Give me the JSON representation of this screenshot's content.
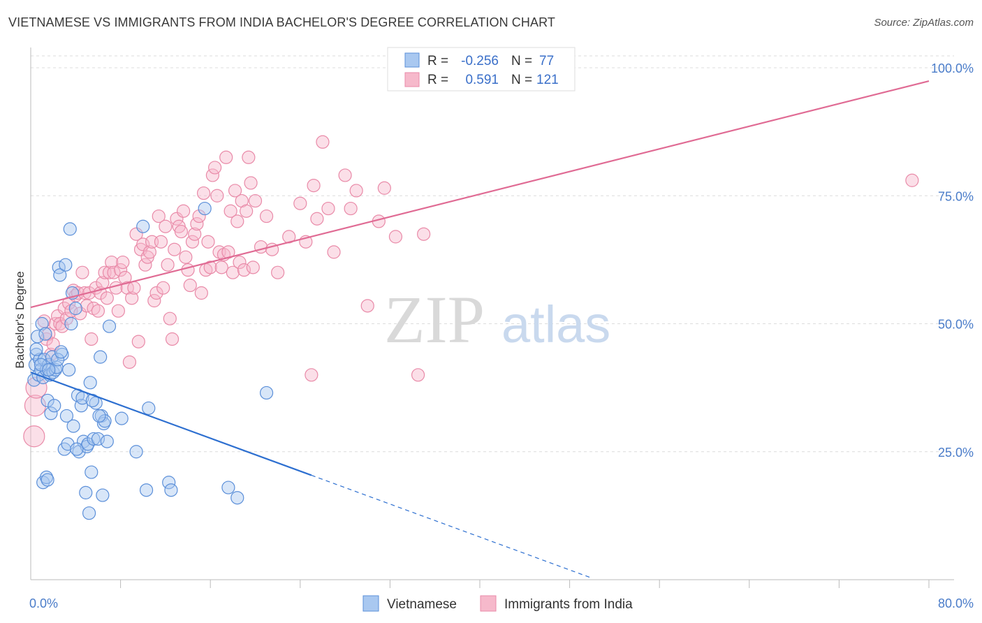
{
  "title": "VIETNAMESE VS IMMIGRANTS FROM INDIA BACHELOR'S DEGREE CORRELATION CHART",
  "source": "Source: ZipAtlas.com",
  "watermark": {
    "zip": "ZIP",
    "atlas": "atlas"
  },
  "colors": {
    "blue_fill": "#a9c8f0",
    "blue_stroke": "#5b8fd9",
    "blue_line": "#2d6fd0",
    "pink_fill": "#f6b9cb",
    "pink_stroke": "#e98aa8",
    "pink_line": "#e06b94",
    "grid": "#dcdcdc",
    "axis": "#bbbbbb"
  },
  "legend": {
    "rows": [
      {
        "r_label": "R =",
        "r_value": "-0.256",
        "n_label": "N =",
        "n_value": "77"
      },
      {
        "r_label": "R =",
        "r_value": "0.591",
        "n_label": "N =",
        "n_value": "121"
      }
    ]
  },
  "chart_data": {
    "type": "scatter",
    "title": "VIETNAMESE VS IMMIGRANTS FROM INDIA BACHELOR'S DEGREE CORRELATION CHART",
    "xlabel": "",
    "ylabel": "Bachelor's Degree",
    "xlim": [
      0,
      80
    ],
    "ylim": [
      0,
      100
    ],
    "x_tick_labels": [
      "0.0%",
      "80.0%"
    ],
    "y_tick_labels": [
      "25.0%",
      "50.0%",
      "75.0%",
      "100.0%"
    ],
    "y_ticks": [
      25,
      50,
      75,
      100
    ],
    "grid": true,
    "legend_position": "top-center",
    "series": [
      {
        "name": "Vietnamese",
        "color": "blue",
        "r": -0.256,
        "n": 77,
        "trend": {
          "x0": 0,
          "y0": 40.5,
          "x1": 25,
          "y1": 20.4,
          "dash_to_x": 50,
          "dash_to_y": 0.3
        },
        "points": [
          [
            0.3,
            39
          ],
          [
            0.4,
            42
          ],
          [
            0.5,
            44
          ],
          [
            0.6,
            47.5
          ],
          [
            0.7,
            40
          ],
          [
            0.8,
            43
          ],
          [
            0.9,
            41
          ],
          [
            1.0,
            50
          ],
          [
            1.1,
            39.5
          ],
          [
            1.2,
            43
          ],
          [
            1.3,
            48
          ],
          [
            1.4,
            41
          ],
          [
            1.5,
            35
          ],
          [
            1.6,
            42
          ],
          [
            1.7,
            40
          ],
          [
            1.8,
            32.5
          ],
          [
            1.9,
            43.5
          ],
          [
            2.0,
            40.5
          ],
          [
            2.1,
            34
          ],
          [
            2.2,
            41
          ],
          [
            2.3,
            41.5
          ],
          [
            2.5,
            61
          ],
          [
            2.6,
            59.5
          ],
          [
            2.8,
            44
          ],
          [
            3.0,
            25.5
          ],
          [
            3.1,
            61.5
          ],
          [
            3.2,
            32
          ],
          [
            3.3,
            26.5
          ],
          [
            3.5,
            68.5
          ],
          [
            3.6,
            50
          ],
          [
            3.7,
            56
          ],
          [
            3.8,
            30
          ],
          [
            4.0,
            53
          ],
          [
            4.2,
            36
          ],
          [
            4.3,
            25
          ],
          [
            4.5,
            34
          ],
          [
            4.6,
            35.5
          ],
          [
            4.7,
            27
          ],
          [
            4.9,
            17
          ],
          [
            5.0,
            26
          ],
          [
            5.1,
            26.5
          ],
          [
            5.2,
            13
          ],
          [
            5.3,
            38.5
          ],
          [
            5.4,
            21
          ],
          [
            5.6,
            27.5
          ],
          [
            5.8,
            34.5
          ],
          [
            6.0,
            27.5
          ],
          [
            6.2,
            43.5
          ],
          [
            6.3,
            32
          ],
          [
            6.4,
            16.5
          ],
          [
            6.5,
            30.5
          ],
          [
            6.6,
            31
          ],
          [
            6.8,
            27
          ],
          [
            7.0,
            49.5
          ],
          [
            8.1,
            31.5
          ],
          [
            9.4,
            25
          ],
          [
            10.0,
            69
          ],
          [
            10.3,
            17.5
          ],
          [
            10.5,
            33.5
          ],
          [
            12.3,
            19
          ],
          [
            12.5,
            17.5
          ],
          [
            15.5,
            72.5
          ],
          [
            17.6,
            18
          ],
          [
            18.4,
            16
          ],
          [
            21.0,
            36.5
          ],
          [
            1.1,
            19
          ],
          [
            1.4,
            20
          ],
          [
            1.5,
            19.5
          ],
          [
            0.9,
            42
          ],
          [
            1.6,
            41
          ],
          [
            2.4,
            43
          ],
          [
            2.7,
            44.5
          ],
          [
            3.4,
            41
          ],
          [
            4.1,
            25.5
          ],
          [
            5.5,
            35
          ],
          [
            6.1,
            32
          ],
          [
            0.5,
            45
          ]
        ]
      },
      {
        "name": "Immigrants from India",
        "color": "pink",
        "r": 0.591,
        "n": 121,
        "trend": {
          "x0": 0,
          "y0": 53.2,
          "x1": 80,
          "y1": 97.4
        },
        "points": [
          [
            0.3,
            28
          ],
          [
            0.4,
            34
          ],
          [
            0.5,
            37.5
          ],
          [
            1.2,
            50.5
          ],
          [
            1.4,
            47
          ],
          [
            1.6,
            48
          ],
          [
            1.8,
            44
          ],
          [
            2.0,
            46
          ],
          [
            2.2,
            50
          ],
          [
            2.4,
            51.5
          ],
          [
            2.6,
            50
          ],
          [
            2.8,
            49.5
          ],
          [
            3.0,
            53
          ],
          [
            3.2,
            51
          ],
          [
            3.4,
            54
          ],
          [
            3.6,
            52.5
          ],
          [
            3.8,
            56.5
          ],
          [
            4.0,
            55.5
          ],
          [
            4.2,
            56
          ],
          [
            4.4,
            52
          ],
          [
            4.6,
            60
          ],
          [
            4.8,
            56
          ],
          [
            5.0,
            53.5
          ],
          [
            5.2,
            56
          ],
          [
            5.4,
            47
          ],
          [
            5.6,
            53
          ],
          [
            5.8,
            57
          ],
          [
            6.0,
            52.5
          ],
          [
            6.2,
            56
          ],
          [
            6.4,
            58
          ],
          [
            6.6,
            60
          ],
          [
            6.8,
            55
          ],
          [
            7.0,
            60
          ],
          [
            7.2,
            62
          ],
          [
            7.4,
            60
          ],
          [
            7.6,
            57
          ],
          [
            7.8,
            52.5
          ],
          [
            8.0,
            60.5
          ],
          [
            8.2,
            62
          ],
          [
            8.4,
            59
          ],
          [
            8.6,
            57
          ],
          [
            8.8,
            42.5
          ],
          [
            9.0,
            55
          ],
          [
            9.2,
            57
          ],
          [
            9.4,
            67.5
          ],
          [
            9.6,
            46.5
          ],
          [
            9.8,
            64.5
          ],
          [
            10.0,
            65.5
          ],
          [
            10.2,
            61.5
          ],
          [
            10.4,
            63
          ],
          [
            10.6,
            64
          ],
          [
            10.8,
            66
          ],
          [
            11.0,
            54.5
          ],
          [
            11.2,
            56
          ],
          [
            11.4,
            71
          ],
          [
            11.6,
            66
          ],
          [
            11.8,
            57
          ],
          [
            12.0,
            69
          ],
          [
            12.2,
            61.5
          ],
          [
            12.4,
            51
          ],
          [
            12.6,
            47
          ],
          [
            12.8,
            64.5
          ],
          [
            13.0,
            70.5
          ],
          [
            13.2,
            69
          ],
          [
            13.4,
            68
          ],
          [
            13.6,
            72
          ],
          [
            13.8,
            63
          ],
          [
            14.0,
            60.5
          ],
          [
            14.2,
            57.5
          ],
          [
            14.4,
            66
          ],
          [
            14.6,
            67.5
          ],
          [
            14.8,
            69.5
          ],
          [
            15.0,
            71
          ],
          [
            15.2,
            56
          ],
          [
            15.4,
            75.5
          ],
          [
            15.6,
            60.5
          ],
          [
            15.8,
            66
          ],
          [
            16.0,
            61
          ],
          [
            16.2,
            79
          ],
          [
            16.4,
            80.5
          ],
          [
            16.6,
            75
          ],
          [
            16.8,
            64
          ],
          [
            17.0,
            61
          ],
          [
            17.2,
            63.5
          ],
          [
            17.4,
            82.5
          ],
          [
            17.6,
            64
          ],
          [
            17.8,
            72
          ],
          [
            18.0,
            60
          ],
          [
            18.2,
            76
          ],
          [
            18.4,
            70
          ],
          [
            18.6,
            62
          ],
          [
            18.8,
            74
          ],
          [
            19.0,
            60.5
          ],
          [
            19.2,
            72
          ],
          [
            19.4,
            82.5
          ],
          [
            19.6,
            77.5
          ],
          [
            19.8,
            61
          ],
          [
            20.0,
            74
          ],
          [
            20.5,
            65
          ],
          [
            21.0,
            71
          ],
          [
            21.5,
            64.5
          ],
          [
            22.0,
            60
          ],
          [
            23.0,
            67
          ],
          [
            24.0,
            73.5
          ],
          [
            24.5,
            66
          ],
          [
            25.0,
            40
          ],
          [
            25.2,
            77
          ],
          [
            25.5,
            70.5
          ],
          [
            26.0,
            85.5
          ],
          [
            26.5,
            72.5
          ],
          [
            27.0,
            64
          ],
          [
            28.0,
            79
          ],
          [
            28.5,
            72.5
          ],
          [
            29.0,
            76
          ],
          [
            30.0,
            53.5
          ],
          [
            31.0,
            70
          ],
          [
            31.5,
            76.5
          ],
          [
            32.5,
            67
          ],
          [
            34.5,
            40
          ],
          [
            35.0,
            67.5
          ],
          [
            78.5,
            78
          ]
        ]
      }
    ]
  },
  "bottom_legend": [
    {
      "label": "Vietnamese"
    },
    {
      "label": "Immigrants from India"
    }
  ]
}
